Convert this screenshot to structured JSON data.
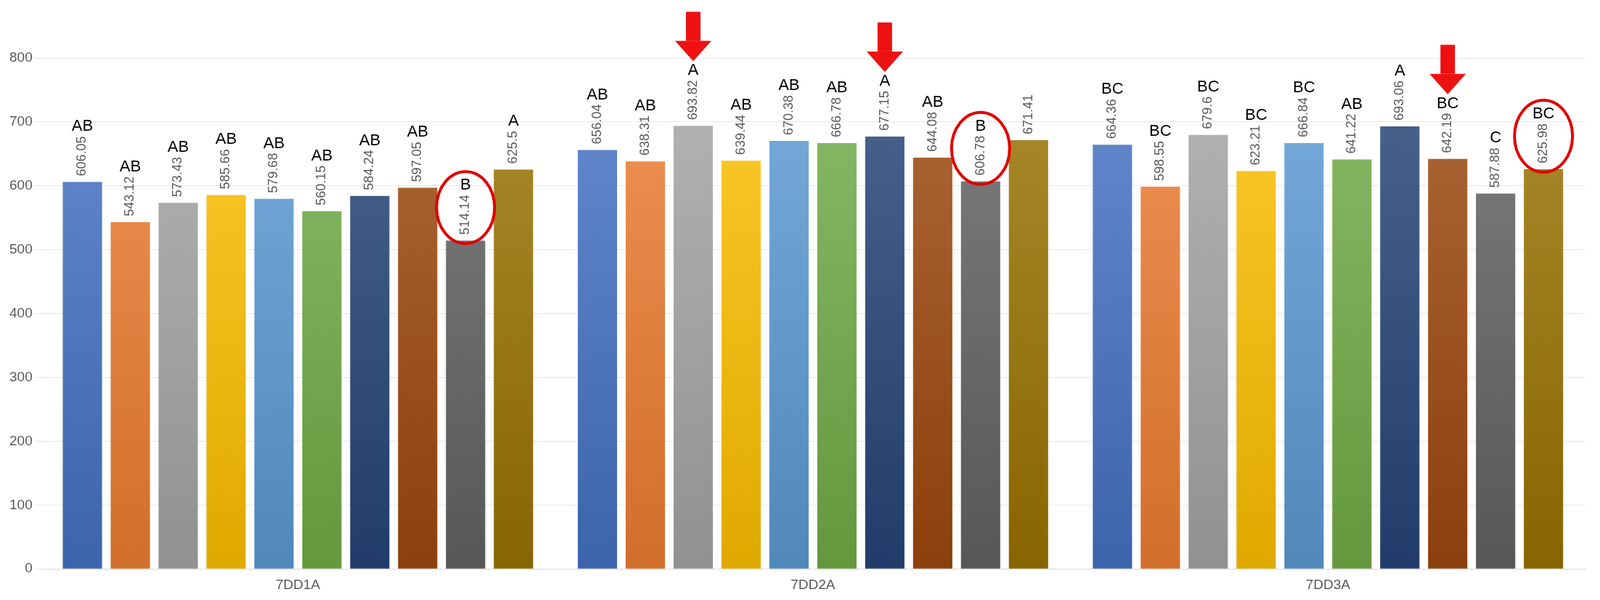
{
  "chart_data": {
    "type": "bar",
    "categories": [
      "7DD1A",
      "7DD2A",
      "7DD3A"
    ],
    "series": [
      {
        "color": "#4472c4",
        "values": [
          606.05,
          656.04,
          664.36
        ],
        "annotations": [
          "AB",
          "AB",
          "BC"
        ]
      },
      {
        "color": "#ed7d31",
        "values": [
          543.12,
          638.31,
          598.55
        ],
        "annotations": [
          "AB",
          "AB",
          "BC"
        ]
      },
      {
        "color": "#a5a5a5",
        "values": [
          573.43,
          693.82,
          679.6
        ],
        "annotations": [
          "AB",
          "A",
          "BC"
        ]
      },
      {
        "color": "#ffc000",
        "values": [
          585.66,
          639.44,
          623.21
        ],
        "annotations": [
          "AB",
          "AB",
          "BC"
        ]
      },
      {
        "color": "#5b9bd5",
        "values": [
          579.68,
          670.38,
          666.84
        ],
        "annotations": [
          "AB",
          "AB",
          "BC"
        ]
      },
      {
        "color": "#70ad47",
        "values": [
          560.15,
          666.78,
          641.22
        ],
        "annotations": [
          "AB",
          "AB",
          "AB"
        ]
      },
      {
        "color": "#264478",
        "values": [
          584.24,
          677.15,
          693.06
        ],
        "annotations": [
          "AB",
          "A",
          "A"
        ]
      },
      {
        "color": "#9e480e",
        "values": [
          597.05,
          644.08,
          642.19
        ],
        "annotations": [
          "AB",
          "AB",
          "BC"
        ]
      },
      {
        "color": "#636363",
        "values": [
          514.14,
          606.78,
          587.88
        ],
        "annotations": [
          "B",
          "B",
          "C"
        ]
      },
      {
        "color": "#997300",
        "values": [
          625.5,
          671.41,
          625.98
        ],
        "annotations": [
          "A",
          null,
          "BC"
        ]
      }
    ],
    "ylim": [
      0,
      800
    ],
    "yticks": [
      0,
      100,
      200,
      300,
      400,
      500,
      600,
      700,
      800
    ],
    "grid": true,
    "data_labels": true
  }
}
